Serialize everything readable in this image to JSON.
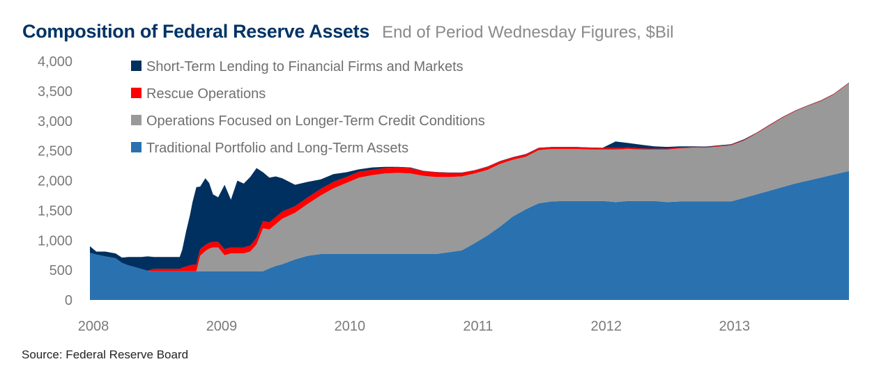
{
  "colors": {
    "short_term": "#00305f",
    "rescue": "#ff0000",
    "longer_term": "#999999",
    "traditional": "#2a71b0",
    "title": "#003366"
  },
  "source": "Source:  Federal Reserve Board",
  "chart_data": {
    "type": "area",
    "stacked": true,
    "title": "Composition of Federal Reserve Assets",
    "subtitle": "End of Period Wednesday Figures, $Bil",
    "xlabel": "",
    "ylabel": "",
    "ylim": [
      0,
      4000
    ],
    "yticks": [
      "0",
      "500",
      "1,000",
      "1,500",
      "2,000",
      "2,500",
      "3,000",
      "3,500",
      "4,000"
    ],
    "xlim": [
      2008.0,
      2013.92
    ],
    "xticks": [
      "2008",
      "2009",
      "2010",
      "2011",
      "2012",
      "2013"
    ],
    "grid": false,
    "legend_position": "top-left",
    "x": [
      2008.0,
      2008.05,
      2008.12,
      2008.2,
      2008.25,
      2008.3,
      2008.35,
      2008.4,
      2008.45,
      2008.5,
      2008.55,
      2008.6,
      2008.65,
      2008.7,
      2008.72,
      2008.75,
      2008.78,
      2008.8,
      2008.83,
      2008.86,
      2008.9,
      2008.93,
      2008.96,
      2009.0,
      2009.05,
      2009.1,
      2009.15,
      2009.2,
      2009.25,
      2009.3,
      2009.35,
      2009.4,
      2009.45,
      2009.5,
      2009.6,
      2009.7,
      2009.8,
      2009.9,
      2010.0,
      2010.1,
      2010.2,
      2010.3,
      2010.4,
      2010.5,
      2010.6,
      2010.7,
      2010.8,
      2010.9,
      2011.0,
      2011.1,
      2011.2,
      2011.3,
      2011.4,
      2011.5,
      2011.6,
      2011.7,
      2011.8,
      2011.9,
      2012.0,
      2012.1,
      2012.2,
      2012.3,
      2012.4,
      2012.5,
      2012.6,
      2012.7,
      2012.8,
      2012.9,
      2013.0,
      2013.1,
      2013.2,
      2013.3,
      2013.4,
      2013.5,
      2013.6,
      2013.7,
      2013.8,
      2013.92
    ],
    "series": [
      {
        "name": "Traditional Portfolio and Long-Term Assets",
        "color": "#2a71b0",
        "values": [
          790,
          760,
          730,
          700,
          620,
          580,
          550,
          520,
          490,
          480,
          480,
          480,
          480,
          480,
          480,
          480,
          480,
          480,
          480,
          480,
          480,
          480,
          480,
          480,
          480,
          480,
          480,
          480,
          480,
          480,
          480,
          530,
          570,
          600,
          680,
          740,
          770,
          770,
          770,
          770,
          770,
          770,
          770,
          770,
          770,
          770,
          800,
          830,
          950,
          1080,
          1230,
          1400,
          1520,
          1620,
          1650,
          1660,
          1660,
          1660,
          1660,
          1640,
          1660,
          1660,
          1660,
          1640,
          1650,
          1650,
          1650,
          1650,
          1650,
          1710,
          1770,
          1830,
          1890,
          1950,
          2000,
          2050,
          2100,
          2160
        ]
      },
      {
        "name": "Operations Focused on Longer-Term Credit Conditions",
        "color": "#999999",
        "values": [
          0,
          0,
          0,
          0,
          0,
          0,
          0,
          0,
          0,
          0,
          0,
          0,
          0,
          0,
          0,
          0,
          0,
          0,
          0,
          260,
          340,
          380,
          400,
          400,
          270,
          300,
          300,
          300,
          330,
          450,
          720,
          650,
          700,
          760,
          780,
          870,
          980,
          1100,
          1190,
          1280,
          1320,
          1350,
          1360,
          1350,
          1310,
          1290,
          1260,
          1240,
          1170,
          1100,
          1050,
          950,
          880,
          890,
          880,
          870,
          870,
          860,
          860,
          880,
          870,
          860,
          860,
          880,
          890,
          900,
          900,
          920,
          940,
          960,
          1020,
          1090,
          1160,
          1210,
          1250,
          1280,
          1340,
          1470
        ]
      },
      {
        "name": "Rescue Operations",
        "color": "#ff0000",
        "values": [
          0,
          0,
          0,
          0,
          0,
          0,
          0,
          0,
          0,
          40,
          40,
          40,
          40,
          40,
          60,
          80,
          100,
          110,
          110,
          110,
          100,
          100,
          90,
          90,
          100,
          100,
          100,
          100,
          100,
          110,
          120,
          120,
          120,
          120,
          110,
          110,
          110,
          110,
          100,
          100,
          90,
          90,
          90,
          90,
          80,
          80,
          70,
          60,
          50,
          50,
          45,
          40,
          40,
          35,
          30,
          30,
          30,
          30,
          25,
          25,
          20,
          20,
          15,
          15,
          15,
          15,
          10,
          10,
          10,
          10,
          10,
          10,
          8,
          8,
          8,
          8,
          8,
          8
        ]
      },
      {
        "name": "Short-Term Lending to Financial Firms and Markets",
        "color": "#00305f",
        "values": [
          110,
          50,
          80,
          80,
          90,
          140,
          170,
          200,
          240,
          200,
          200,
          200,
          200,
          200,
          300,
          590,
          840,
          1050,
          1300,
          1050,
          1120,
          1000,
          800,
          750,
          1080,
          800,
          1120,
          1070,
          1150,
          1170,
          820,
          750,
          680,
          560,
          360,
          260,
          160,
          130,
          80,
          40,
          40,
          20,
          10,
          10,
          5,
          5,
          5,
          5,
          5,
          5,
          5,
          5,
          5,
          5,
          5,
          5,
          5,
          5,
          5,
          110,
          80,
          60,
          40,
          30,
          20,
          10,
          10,
          10,
          10,
          10,
          5,
          5,
          5,
          5,
          5,
          5,
          5,
          5
        ]
      }
    ],
    "legend": [
      "Short-Term Lending to Financial Firms and Markets",
      "Rescue Operations",
      "Operations Focused on Longer-Term Credit Conditions",
      "Traditional Portfolio and Long-Term Assets"
    ]
  }
}
